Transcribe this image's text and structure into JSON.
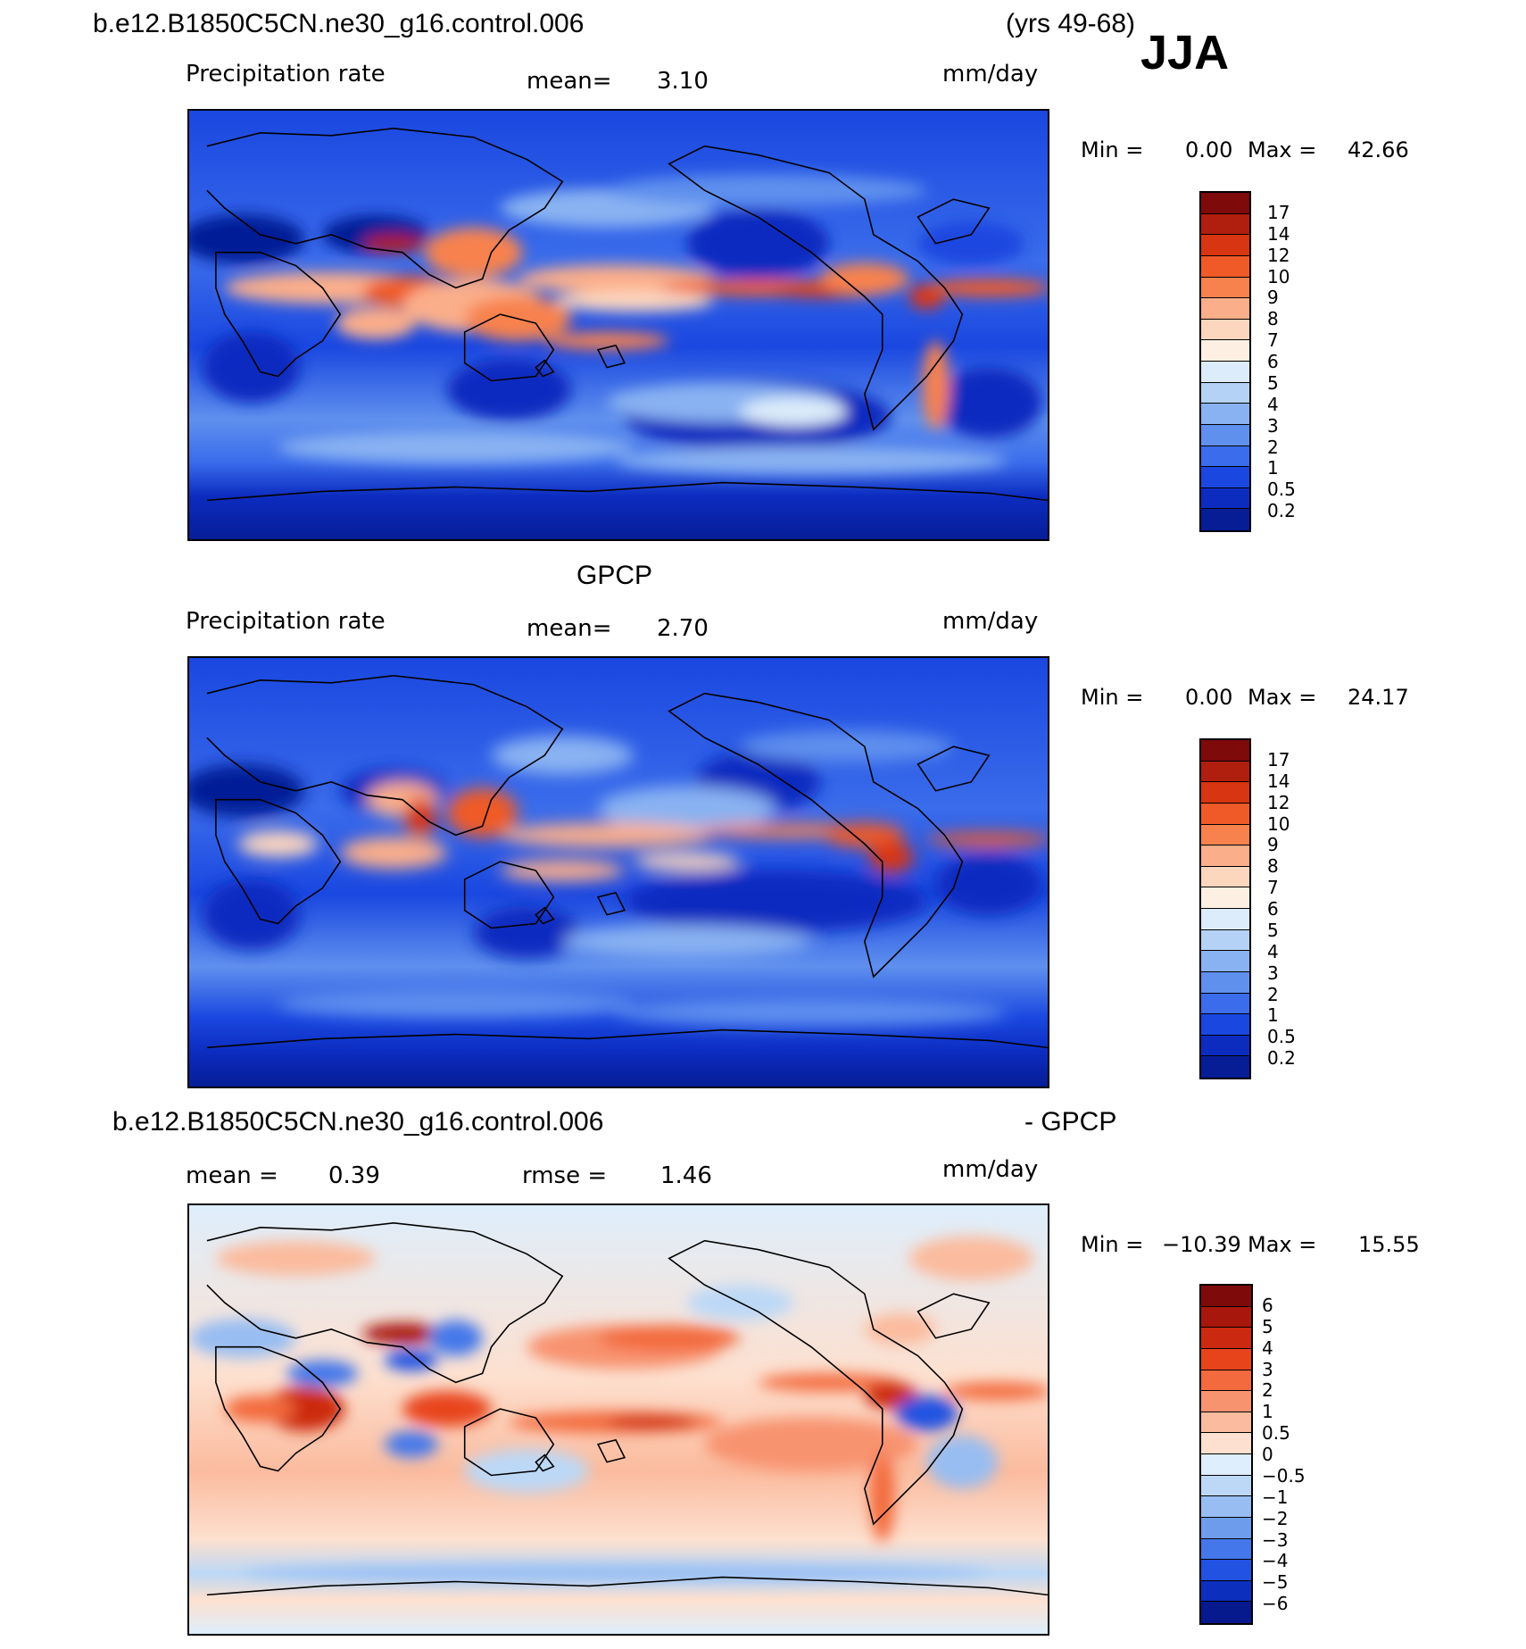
{
  "header": {
    "case_name": "b.e12.B1850C5CN.ne30_g16.control.006",
    "years": "(yrs 49-68)",
    "season": "JJA"
  },
  "panels": [
    {
      "id": "model",
      "variable": "Precipitation rate",
      "stat1_label": "mean=",
      "stat1_value": "3.10",
      "units": "mm/day",
      "minmax": {
        "min_label": "Min =",
        "min": "0.00",
        "max_label": "Max =",
        "max": "42.66"
      },
      "colorbar": {
        "colors": [
          "#7f0a0a",
          "#b01e0e",
          "#d83512",
          "#f05a28",
          "#f8824e",
          "#fbae8a",
          "#fdd6be",
          "#fdf0e3",
          "#dcecfa",
          "#b4d2f6",
          "#89b2f2",
          "#5f90ee",
          "#3a6ceb",
          "#1a47e0",
          "#0c2cc0",
          "#061d96"
        ],
        "labels": [
          "17",
          "14",
          "12",
          "10",
          "9",
          "8",
          "7",
          "6",
          "5",
          "4",
          "3",
          "2",
          "1",
          "0.5",
          "0.2"
        ]
      }
    },
    {
      "id": "obs",
      "title": "GPCP",
      "variable": "Precipitation rate",
      "stat1_label": "mean=",
      "stat1_value": "2.70",
      "units": "mm/day",
      "minmax": {
        "min_label": "Min =",
        "min": "0.00",
        "max_label": "Max =",
        "max": "24.17"
      },
      "colorbar": {
        "colors": [
          "#7f0a0a",
          "#b01e0e",
          "#d83512",
          "#f05a28",
          "#f8824e",
          "#fbae8a",
          "#fdd6be",
          "#fdf0e3",
          "#dcecfa",
          "#b4d2f6",
          "#89b2f2",
          "#5f90ee",
          "#3a6ceb",
          "#1a47e0",
          "#0c2cc0",
          "#061d96"
        ],
        "labels": [
          "17",
          "14",
          "12",
          "10",
          "9",
          "8",
          "7",
          "6",
          "5",
          "4",
          "3",
          "2",
          "1",
          "0.5",
          "0.2"
        ]
      }
    },
    {
      "id": "diff",
      "title_left": "b.e12.B1850C5CN.ne30_g16.control.006",
      "title_right": "- GPCP",
      "stat1_label": "mean =",
      "stat1_value": "0.39",
      "stat2_label": "rmse =",
      "stat2_value": "1.46",
      "units": "mm/day",
      "minmax": {
        "min_label": "Min =",
        "min": "−10.39",
        "max_label": "Max =",
        "max": "15.55"
      },
      "colorbar": {
        "colors": [
          "#7f0a0a",
          "#a8170c",
          "#cc2a10",
          "#e8441c",
          "#f36a3e",
          "#f89370",
          "#fbbb9e",
          "#fde0cf",
          "#deeefc",
          "#bcd8f6",
          "#98bdf2",
          "#6e9ced",
          "#4478ea",
          "#2152e2",
          "#0d2fbe",
          "#061a8e"
        ],
        "labels": [
          "6",
          "5",
          "4",
          "3",
          "2",
          "1",
          "0.5",
          "0",
          "−0.5",
          "−1",
          "−2",
          "−3",
          "−4",
          "−5",
          "−6"
        ]
      }
    }
  ]
}
